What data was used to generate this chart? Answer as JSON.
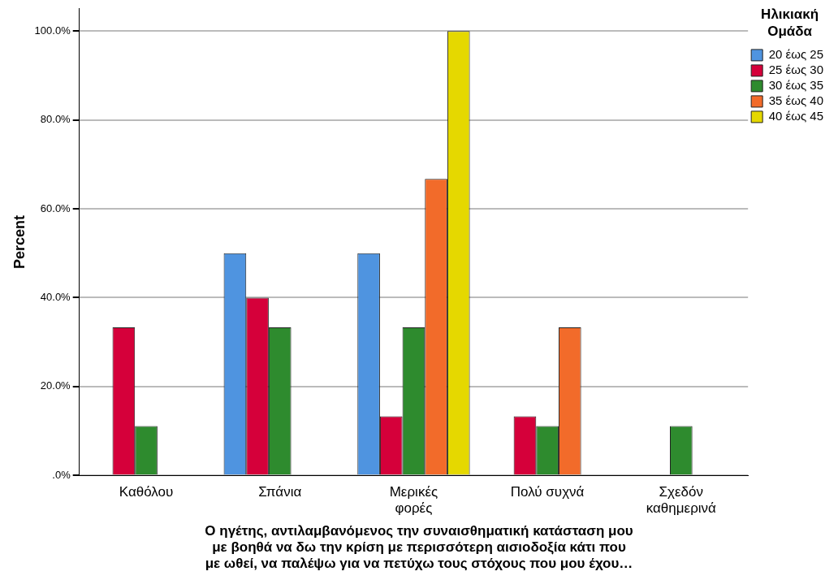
{
  "chart_data": {
    "type": "bar",
    "xlabel": "Ο ηγέτης, αντιλαμβανόμενος την συναισθηματική κατάσταση μου\nμε βοηθά να δω την κρίση με περισσότερη αισιοδοξία κάτι που\nμε ωθεί, να παλέψω για να πετύχω τους στόχους που μου έχου…",
    "ylabel": "Percent",
    "legend_title": "Ηλικιακή Ομάδα",
    "categories": [
      "Καθόλου",
      "Σπάνια",
      "Μερικές φορές",
      "Πολύ συχνά",
      "Σχεδόν καθημερινά"
    ],
    "series": [
      {
        "name": "20 έως 25",
        "color": "#4f94e0",
        "values": [
          0,
          50,
          50,
          0,
          0
        ]
      },
      {
        "name": "25 έως 30",
        "color": "#d5003a",
        "values": [
          33.3,
          40,
          13.3,
          13.3,
          0
        ]
      },
      {
        "name": "30 έως 35",
        "color": "#2e8b2e",
        "values": [
          11.1,
          33.3,
          33.3,
          11.1,
          11.1
        ]
      },
      {
        "name": "35 έως 40",
        "color": "#f26b2a",
        "values": [
          0,
          0,
          66.7,
          33.3,
          0
        ]
      },
      {
        "name": "40 έως 45",
        "color": "#e5d800",
        "values": [
          0,
          0,
          100,
          0,
          0
        ]
      }
    ],
    "ylim": [
      0,
      105
    ],
    "yticks": [
      {
        "value": 0,
        "label": ".0%"
      },
      {
        "value": 20,
        "label": "20.0%"
      },
      {
        "value": 40,
        "label": "40.0%"
      },
      {
        "value": 60,
        "label": "60.0%"
      },
      {
        "value": 80,
        "label": "80.0%"
      },
      {
        "value": 100,
        "label": "100.0%"
      }
    ],
    "grid": "y",
    "legend": "top right"
  }
}
